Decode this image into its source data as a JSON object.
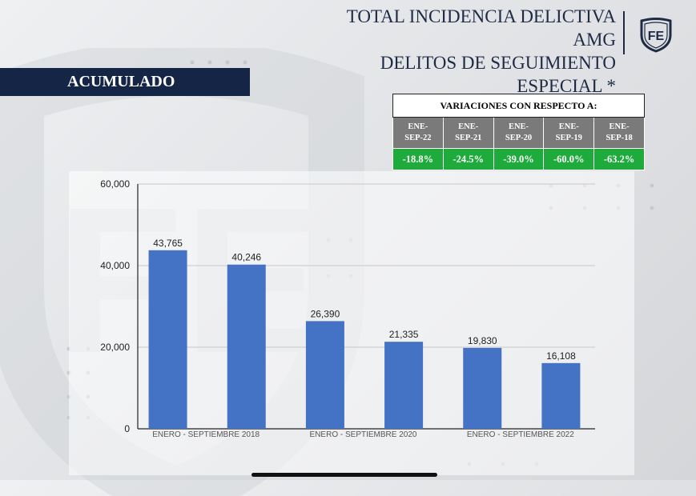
{
  "header": {
    "title_lines": [
      "TOTAL INCIDENCIA DELICTIVA",
      "AMG",
      "DELITOS DE SEGUIMIENTO",
      "ESPECIAL *"
    ],
    "logo_text": "FE",
    "section_label": "ACUMULADO"
  },
  "variations": {
    "title": "VARIACIONES CON RESPECTO A:",
    "periods": [
      {
        "line1": "ENE-",
        "line2": "SEP-22",
        "value": "-18.8%"
      },
      {
        "line1": "ENE-",
        "line2": "SEP-21",
        "value": "-24.5%"
      },
      {
        "line1": "ENE-",
        "line2": "SEP-20",
        "value": "-39.0%"
      },
      {
        "line1": "ENE-",
        "line2": "SEP-19",
        "value": "-60.0%"
      },
      {
        "line1": "ENE-",
        "line2": "SEP-18",
        "value": "-63.2%"
      }
    ],
    "colors": {
      "period_bg": "#7a7a7a",
      "value_bg": "#1fab3c"
    }
  },
  "chart_data": {
    "type": "bar",
    "categories": [
      "ENERO - SEPTIEMBRE 2018",
      "",
      "ENERO - SEPTIEMBRE 2020",
      "",
      "ENERO - SEPTIEMBRE 2022",
      ""
    ],
    "values": [
      43765,
      40246,
      26390,
      21335,
      19830,
      16108
    ],
    "value_labels": [
      "43,765",
      "40,246",
      "26,390",
      "21,335",
      "19,830",
      "16,108"
    ],
    "yticks": [
      "0",
      "20,000",
      "40,000",
      "60,000"
    ],
    "ylim": [
      0,
      60000
    ],
    "grid": true,
    "bar_color": "#4472c4",
    "title": "",
    "xlabel": "",
    "ylabel": ""
  }
}
